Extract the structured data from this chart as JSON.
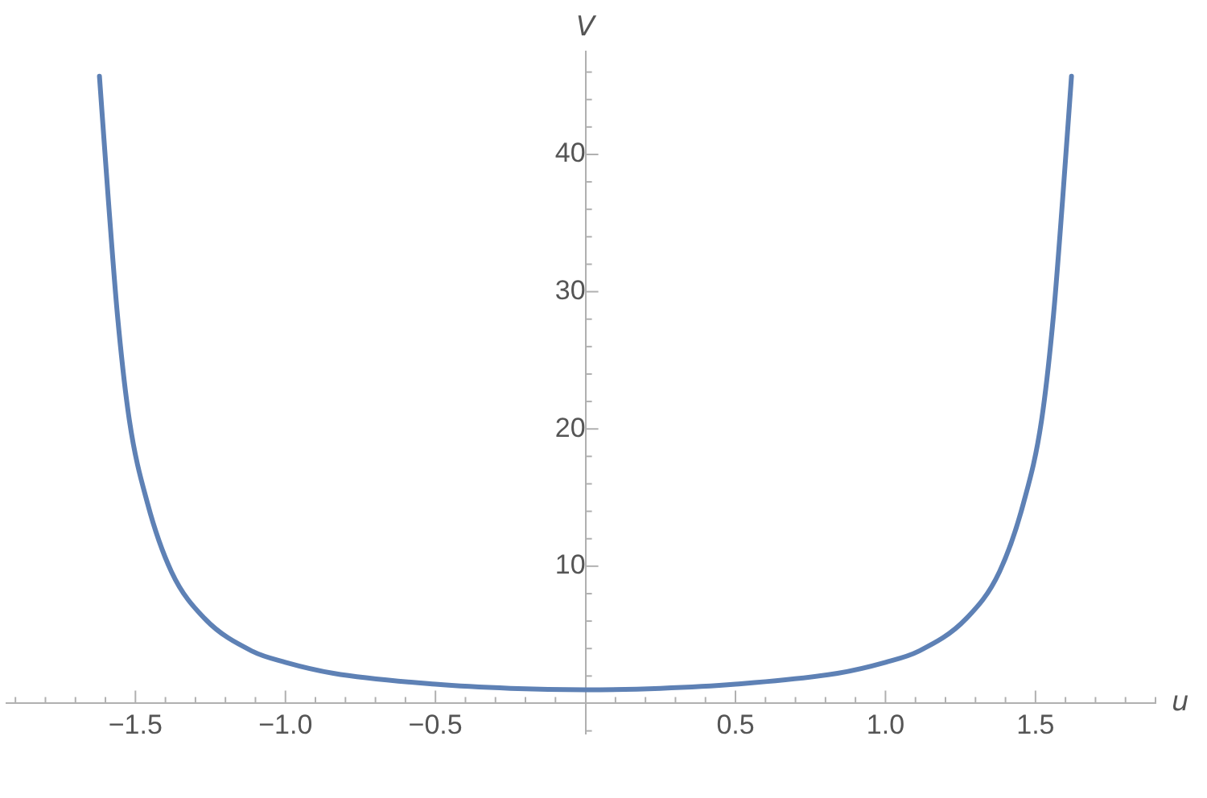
{
  "chart_data": {
    "type": "line",
    "xlabel": "u",
    "ylabel": "V",
    "marker": "none",
    "xlim": [
      -1.93,
      1.9
    ],
    "ylim": [
      -2.2,
      47.5
    ],
    "xticks": [
      {
        "value": -1.9,
        "label": null
      },
      {
        "value": -1.8,
        "label": null
      },
      {
        "value": -1.7,
        "label": null
      },
      {
        "value": -1.6,
        "label": null
      },
      {
        "value": -1.5,
        "label": "−1.5"
      },
      {
        "value": -1.4,
        "label": null
      },
      {
        "value": -1.3,
        "label": null
      },
      {
        "value": -1.2,
        "label": null
      },
      {
        "value": -1.1,
        "label": null
      },
      {
        "value": -1.0,
        "label": "−1.0"
      },
      {
        "value": -0.9,
        "label": null
      },
      {
        "value": -0.8,
        "label": null
      },
      {
        "value": -0.7,
        "label": null
      },
      {
        "value": -0.6,
        "label": null
      },
      {
        "value": -0.5,
        "label": "−0.5"
      },
      {
        "value": -0.4,
        "label": null
      },
      {
        "value": -0.3,
        "label": null
      },
      {
        "value": -0.2,
        "label": null
      },
      {
        "value": -0.1,
        "label": null
      },
      {
        "value": 0.1,
        "label": null
      },
      {
        "value": 0.2,
        "label": null
      },
      {
        "value": 0.3,
        "label": null
      },
      {
        "value": 0.4,
        "label": null
      },
      {
        "value": 0.5,
        "label": "0.5"
      },
      {
        "value": 0.6,
        "label": null
      },
      {
        "value": 0.7,
        "label": null
      },
      {
        "value": 0.8,
        "label": null
      },
      {
        "value": 0.9,
        "label": null
      },
      {
        "value": 1.0,
        "label": "1.0"
      },
      {
        "value": 1.1,
        "label": null
      },
      {
        "value": 1.2,
        "label": null
      },
      {
        "value": 1.3,
        "label": null
      },
      {
        "value": 1.4,
        "label": null
      },
      {
        "value": 1.5,
        "label": "1.5"
      },
      {
        "value": 1.6,
        "label": null
      },
      {
        "value": 1.7,
        "label": null
      },
      {
        "value": 1.8,
        "label": null
      },
      {
        "value": 1.9,
        "label": null
      }
    ],
    "yticks": [
      {
        "value": -2,
        "label": null
      },
      {
        "value": 2,
        "label": null
      },
      {
        "value": 4,
        "label": null
      },
      {
        "value": 6,
        "label": null
      },
      {
        "value": 8,
        "label": null
      },
      10,
      {
        "value": 12,
        "label": null
      },
      {
        "value": 14,
        "label": null
      },
      {
        "value": 16,
        "label": null
      },
      {
        "value": 18,
        "label": null
      },
      20,
      {
        "value": 22,
        "label": null
      },
      {
        "value": 24,
        "label": null
      },
      {
        "value": 26,
        "label": null
      },
      {
        "value": 28,
        "label": null
      },
      30,
      {
        "value": 32,
        "label": null
      },
      {
        "value": 34,
        "label": null
      },
      {
        "value": 36,
        "label": null
      },
      {
        "value": 38,
        "label": null
      },
      40,
      {
        "value": 42,
        "label": null
      },
      {
        "value": 44,
        "label": null
      },
      {
        "value": 46,
        "label": null
      }
    ],
    "x": [
      -1.62,
      -1.59,
      -1.56,
      -1.52,
      -1.46,
      -1.38,
      -1.27,
      -1.11,
      -1.0,
      -0.84,
      -0.5,
      -0.25,
      0,
      0.25,
      0.5,
      0.84,
      1.0,
      1.11,
      1.27,
      1.38,
      1.46,
      1.52,
      1.56,
      1.59,
      1.62
    ],
    "series": [
      {
        "color": "#5e81b5",
        "values": [
          45.7,
          36.6,
          28.3,
          20.6,
          14.6,
          9.6,
          6.2,
          3.8,
          3.0,
          2.2,
          1.4,
          1.1,
          1.0,
          1.1,
          1.4,
          2.2,
          3.0,
          3.8,
          6.2,
          9.6,
          14.6,
          20.6,
          28.3,
          36.6,
          45.7
        ]
      }
    ]
  }
}
